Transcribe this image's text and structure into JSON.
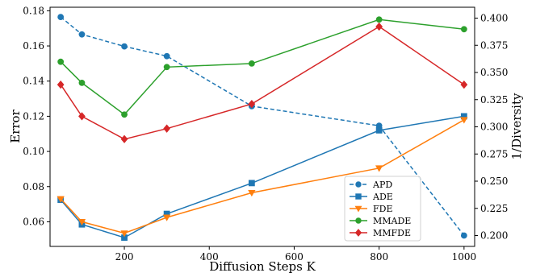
{
  "chart_data": {
    "type": "line",
    "xlabel": "Diffusion Steps K",
    "ylabel_left": "Error",
    "ylabel_right": "1/Diversity",
    "x_ticks": [
      200,
      400,
      600,
      800,
      1000
    ],
    "y_left_ticks": [
      0.06,
      0.08,
      0.1,
      0.12,
      0.14,
      0.16,
      0.18
    ],
    "y_right_ticks": [
      0.2,
      0.225,
      0.25,
      0.275,
      0.3,
      0.325,
      0.35,
      0.375,
      0.4
    ],
    "x_tick_labels": [
      "200",
      "400",
      "600",
      "800",
      "1000"
    ],
    "y_left_tick_labels": [
      "0.06",
      "0.08",
      "0.10",
      "0.12",
      "0.14",
      "0.16",
      "0.18"
    ],
    "y_right_tick_labels": [
      "0.200",
      "0.225",
      "0.250",
      "0.275",
      "0.300",
      "0.325",
      "0.350",
      "0.375",
      "0.400"
    ],
    "xlim": [
      25,
      1025
    ],
    "ylim_left": [
      0.046,
      0.182
    ],
    "ylim_right": [
      0.19,
      0.41
    ],
    "grid": false,
    "legend_placement": "lower-center-right",
    "series": [
      {
        "name": "APD",
        "axis": "right",
        "color": "#1f77b4",
        "marker": "circle",
        "dashed": true,
        "x": [
          50,
          100,
          200,
          300,
          500,
          800,
          1000
        ],
        "y": [
          0.401,
          0.385,
          0.374,
          0.365,
          0.319,
          0.301,
          0.2
        ]
      },
      {
        "name": "ADE",
        "axis": "left",
        "color": "#1f77b4",
        "marker": "square",
        "dashed": false,
        "x": [
          50,
          100,
          200,
          300,
          500,
          800,
          1000
        ],
        "y": [
          0.0725,
          0.0585,
          0.051,
          0.0645,
          0.082,
          0.112,
          0.12
        ]
      },
      {
        "name": "FDE",
        "axis": "left",
        "color": "#ff7f0e",
        "marker": "triangle-down",
        "dashed": false,
        "x": [
          50,
          100,
          200,
          300,
          500,
          800,
          1000
        ],
        "y": [
          0.073,
          0.06,
          0.0535,
          0.0625,
          0.0765,
          0.0905,
          0.118
        ]
      },
      {
        "name": "MMADE",
        "axis": "left",
        "color": "#2ca02c",
        "marker": "circle",
        "dashed": false,
        "x": [
          50,
          100,
          200,
          300,
          500,
          800,
          1000
        ],
        "y": [
          0.151,
          0.139,
          0.121,
          0.148,
          0.15,
          0.175,
          0.1695
        ]
      },
      {
        "name": "MMFDE",
        "axis": "left",
        "color": "#d62728",
        "marker": "diamond",
        "dashed": false,
        "x": [
          50,
          100,
          200,
          300,
          500,
          800,
          1000
        ],
        "y": [
          0.138,
          0.12,
          0.107,
          0.113,
          0.127,
          0.171,
          0.138
        ]
      }
    ]
  }
}
